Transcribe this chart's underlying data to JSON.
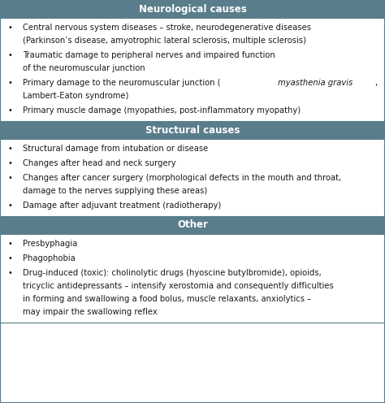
{
  "header_bg_color": "#5a7d8c",
  "header_text_color": "#ffffff",
  "body_bg_color": "#ffffff",
  "border_color": "#5a7d8c",
  "text_color": "#1a1a1a",
  "sections": [
    {
      "header": "Neurological causes",
      "items": [
        [
          {
            "text": "Central nervous system diseases – stroke, neurodegenerative diseases",
            "italic": false
          },
          {
            "text": "(Parkinson’s disease, amyotrophic lateral sclerosis, multiple sclerosis)",
            "italic": false,
            "continuation": true
          }
        ],
        [
          {
            "text": "Traumatic damage to peripheral nerves and impaired function",
            "italic": false
          },
          {
            "text": "of the neuromuscular junction",
            "italic": false,
            "continuation": true
          }
        ],
        [
          {
            "text": "Primary damage to the neuromuscular junction (",
            "italic": false,
            "inline_italic": "myasthenia gravis",
            "after_italic": ","
          },
          {
            "text": "Lambert-Eaton syndrome)",
            "italic": false,
            "continuation": true
          }
        ],
        [
          {
            "text": "Primary muscle damage (myopathies, post-inflammatory myopathy)",
            "italic": false
          }
        ]
      ]
    },
    {
      "header": "Structural causes",
      "items": [
        [
          {
            "text": "Structural damage from intubation or disease",
            "italic": false
          }
        ],
        [
          {
            "text": "Changes after head and neck surgery",
            "italic": false
          }
        ],
        [
          {
            "text": "Changes after cancer surgery (morphological defects in the mouth and throat,",
            "italic": false
          },
          {
            "text": "damage to the nerves supplying these areas)",
            "italic": false,
            "continuation": true
          }
        ],
        [
          {
            "text": "Damage after adjuvant treatment (radiotherapy)",
            "italic": false
          }
        ]
      ]
    },
    {
      "header": "Other",
      "items": [
        [
          {
            "text": "Presbyphagia",
            "italic": false
          }
        ],
        [
          {
            "text": "Phagophobia",
            "italic": false
          }
        ],
        [
          {
            "text": "Drug-induced (toxic): cholinolytic drugs (hyoscine butylbromide), opioids,",
            "italic": false
          },
          {
            "text": "tricyclic antidepressants – intensify xerostomia and consequently difficulties",
            "italic": false,
            "continuation": true
          },
          {
            "text": "in forming and swallowing a food bolus, muscle relaxants, anxiolytics –",
            "italic": false,
            "continuation": true
          },
          {
            "text": "may impair the swallowing reflex",
            "italic": false,
            "continuation": true
          }
        ]
      ]
    }
  ],
  "figsize": [
    4.74,
    4.96
  ],
  "dpi": 100,
  "font_size": 7.2,
  "header_font_size": 8.5
}
